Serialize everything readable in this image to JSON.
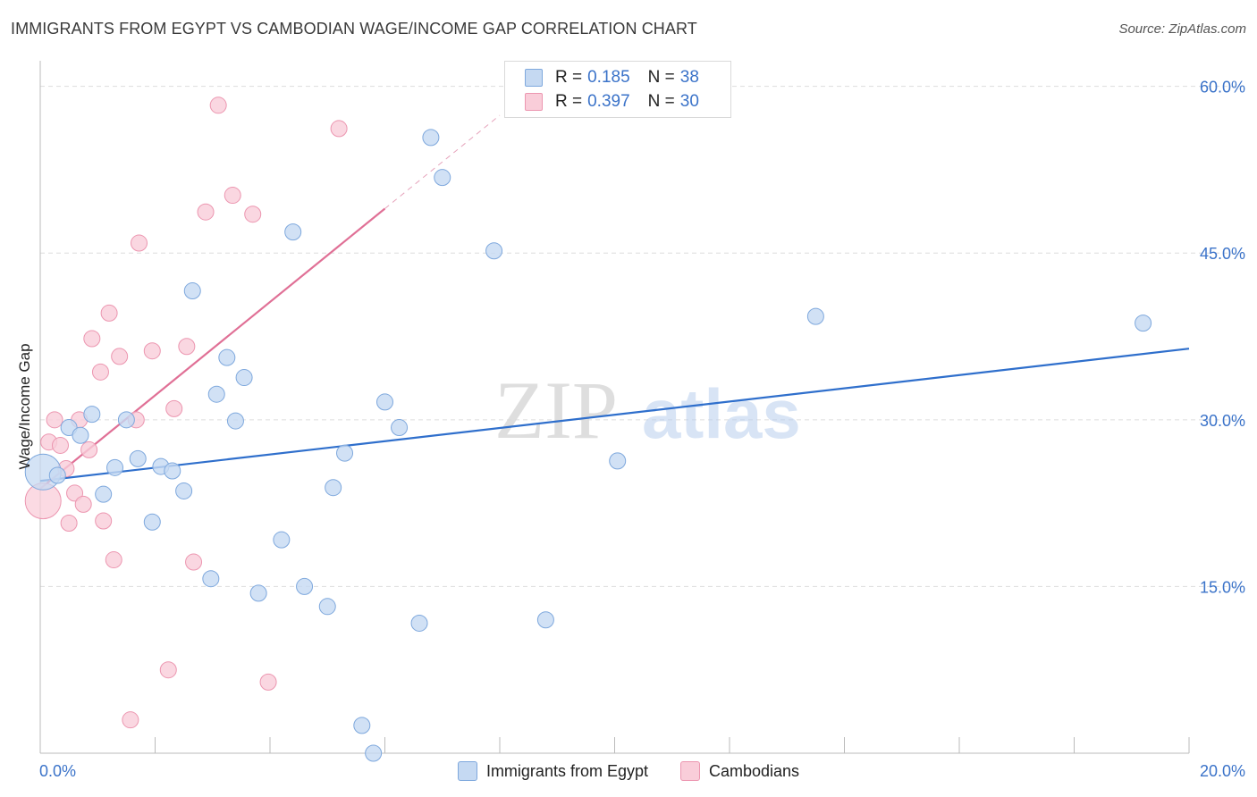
{
  "title": "IMMIGRANTS FROM EGYPT VS CAMBODIAN WAGE/INCOME GAP CORRELATION CHART",
  "source": "Source: ZipAtlas.com",
  "watermark": {
    "zip": "ZIP",
    "atlas": "atlas"
  },
  "legend": {
    "rows": [
      {
        "r_label": "R =",
        "r_value": "0.185",
        "n_label": "N =",
        "n_value": "38"
      },
      {
        "r_label": "R =",
        "r_value": "0.397",
        "n_label": "N =",
        "n_value": "30"
      }
    ]
  },
  "colors": {
    "blue_fill": "#c5d9f2",
    "blue_stroke": "#7ea8dd",
    "blue_line": "#2f6fcc",
    "pink_fill": "#f9cdd9",
    "pink_stroke": "#ec96b0",
    "pink_line": "#e07096",
    "axis_text": "#3b73c9",
    "grid": "#dddddd"
  },
  "chart_data": {
    "type": "scatter",
    "title": "IMMIGRANTS FROM EGYPT VS CAMBODIAN WAGE/INCOME GAP CORRELATION CHART",
    "xlabel": "",
    "ylabel": "Wage/Income Gap",
    "xlim": [
      0,
      20
    ],
    "ylim": [
      0,
      61.5
    ],
    "x_tick_labels": [
      "0.0%",
      "20.0%"
    ],
    "y_ticks": [
      15,
      30,
      45,
      60
    ],
    "y_tick_labels": [
      "15.0%",
      "30.0%",
      "45.0%",
      "60.0%"
    ],
    "series": [
      {
        "name": "Immigrants from Egypt",
        "color": "#c5d9f2",
        "trend": {
          "x": [
            0,
            20
          ],
          "y": [
            24.5,
            36.4
          ]
        },
        "points": [
          {
            "x": 0.05,
            "y": 25.3,
            "big": true
          },
          {
            "x": 0.3,
            "y": 25.0
          },
          {
            "x": 0.5,
            "y": 29.3
          },
          {
            "x": 0.7,
            "y": 28.6
          },
          {
            "x": 0.9,
            "y": 30.5
          },
          {
            "x": 1.1,
            "y": 23.3
          },
          {
            "x": 1.3,
            "y": 25.7
          },
          {
            "x": 1.5,
            "y": 30.0
          },
          {
            "x": 1.7,
            "y": 26.5
          },
          {
            "x": 1.95,
            "y": 20.8
          },
          {
            "x": 2.1,
            "y": 25.8
          },
          {
            "x": 2.3,
            "y": 25.4
          },
          {
            "x": 2.5,
            "y": 23.6
          },
          {
            "x": 2.65,
            "y": 41.6
          },
          {
            "x": 2.97,
            "y": 15.7
          },
          {
            "x": 3.07,
            "y": 32.3
          },
          {
            "x": 3.25,
            "y": 35.6
          },
          {
            "x": 3.4,
            "y": 29.9
          },
          {
            "x": 3.55,
            "y": 33.8
          },
          {
            "x": 3.8,
            "y": 14.4
          },
          {
            "x": 4.2,
            "y": 19.2
          },
          {
            "x": 4.4,
            "y": 46.9
          },
          {
            "x": 4.6,
            "y": 15.0
          },
          {
            "x": 5.0,
            "y": 13.2
          },
          {
            "x": 5.1,
            "y": 23.9
          },
          {
            "x": 5.3,
            "y": 27.0
          },
          {
            "x": 5.6,
            "y": 2.5
          },
          {
            "x": 5.8,
            "y": 0.0
          },
          {
            "x": 6.0,
            "y": 31.6
          },
          {
            "x": 6.25,
            "y": 29.3
          },
          {
            "x": 6.6,
            "y": 11.7
          },
          {
            "x": 6.8,
            "y": 55.4
          },
          {
            "x": 7.0,
            "y": 51.8
          },
          {
            "x": 7.9,
            "y": 45.2
          },
          {
            "x": 8.8,
            "y": 12.0
          },
          {
            "x": 10.05,
            "y": 26.3
          },
          {
            "x": 13.5,
            "y": 39.3
          },
          {
            "x": 19.2,
            "y": 38.7
          }
        ]
      },
      {
        "name": "Cambodians",
        "color": "#f9cdd9",
        "trend": {
          "x": [
            0,
            6.0
          ],
          "y": [
            23.8,
            49.0
          ]
        },
        "trend_ext": {
          "x": [
            6.0,
            8.0
          ],
          "y": [
            49.0,
            57.4
          ]
        },
        "points": [
          {
            "x": 0.05,
            "y": 22.7,
            "big": true
          },
          {
            "x": 0.15,
            "y": 28.0
          },
          {
            "x": 0.25,
            "y": 30.0
          },
          {
            "x": 0.35,
            "y": 27.7
          },
          {
            "x": 0.45,
            "y": 25.6
          },
          {
            "x": 0.5,
            "y": 20.7
          },
          {
            "x": 0.6,
            "y": 23.4
          },
          {
            "x": 0.68,
            "y": 30.0
          },
          {
            "x": 0.75,
            "y": 22.4
          },
          {
            "x": 0.85,
            "y": 27.3
          },
          {
            "x": 0.9,
            "y": 37.3
          },
          {
            "x": 1.05,
            "y": 34.3
          },
          {
            "x": 1.1,
            "y": 20.9
          },
          {
            "x": 1.2,
            "y": 39.6
          },
          {
            "x": 1.28,
            "y": 17.4
          },
          {
            "x": 1.38,
            "y": 35.7
          },
          {
            "x": 1.57,
            "y": 3.0
          },
          {
            "x": 1.67,
            "y": 30.0
          },
          {
            "x": 1.72,
            "y": 45.9
          },
          {
            "x": 1.95,
            "y": 36.2
          },
          {
            "x": 2.23,
            "y": 7.5
          },
          {
            "x": 2.33,
            "y": 31.0
          },
          {
            "x": 2.55,
            "y": 36.6
          },
          {
            "x": 2.67,
            "y": 17.2
          },
          {
            "x": 2.88,
            "y": 48.7
          },
          {
            "x": 3.1,
            "y": 58.3
          },
          {
            "x": 3.35,
            "y": 50.2
          },
          {
            "x": 3.7,
            "y": 48.5
          },
          {
            "x": 3.97,
            "y": 6.4
          },
          {
            "x": 5.2,
            "y": 56.2
          }
        ]
      }
    ]
  },
  "bottom_legend": [
    "Immigrants from Egypt",
    "Cambodians"
  ]
}
